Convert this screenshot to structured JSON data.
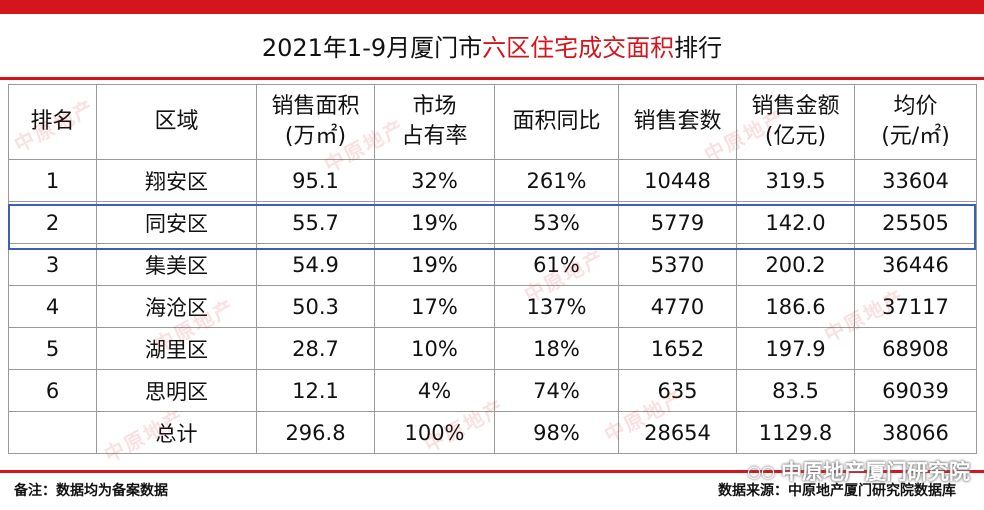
{
  "title": {
    "pre": "2021年1-9月厦门市",
    "highlight": "六区住宅成交面积",
    "post": "排行"
  },
  "headers": [
    [
      "排名"
    ],
    [
      "区域"
    ],
    [
      "销售面积",
      "(万㎡)"
    ],
    [
      "市场",
      "占有率"
    ],
    [
      "面积同比"
    ],
    [
      "销售套数"
    ],
    [
      "销售金额",
      "(亿元)"
    ],
    [
      "均价",
      "(元/㎡)"
    ]
  ],
  "rows": [
    [
      "1",
      "翔安区",
      "95.1",
      "32%",
      "261%",
      "10448",
      "319.5",
      "33604"
    ],
    [
      "2",
      "同安区",
      "55.7",
      "19%",
      "53%",
      "5779",
      "142.0",
      "25505"
    ],
    [
      "3",
      "集美区",
      "54.9",
      "19%",
      "61%",
      "5370",
      "200.2",
      "36446"
    ],
    [
      "4",
      "海沧区",
      "50.3",
      "17%",
      "137%",
      "4770",
      "186.6",
      "37117"
    ],
    [
      "5",
      "湖里区",
      "28.7",
      "10%",
      "18%",
      "1652",
      "197.9",
      "68908"
    ],
    [
      "6",
      "思明区",
      "12.1",
      "4%",
      "74%",
      "635",
      "83.5",
      "69039"
    ],
    [
      "",
      "总计",
      "296.8",
      "100%",
      "98%",
      "28654",
      "1129.8",
      "38066"
    ]
  ],
  "footnote": "备注：数据均为备案数据",
  "source": "数据来源：中原地产厦门研究院数据库",
  "watermark": {
    "icon": "wechat-icon",
    "text": "中原地产厦门研究院"
  },
  "logo_text": "中原地产",
  "colors": {
    "accent": "#d4161c",
    "highlight_box": "#3f5fb5",
    "grid": "#9a9a9a"
  }
}
